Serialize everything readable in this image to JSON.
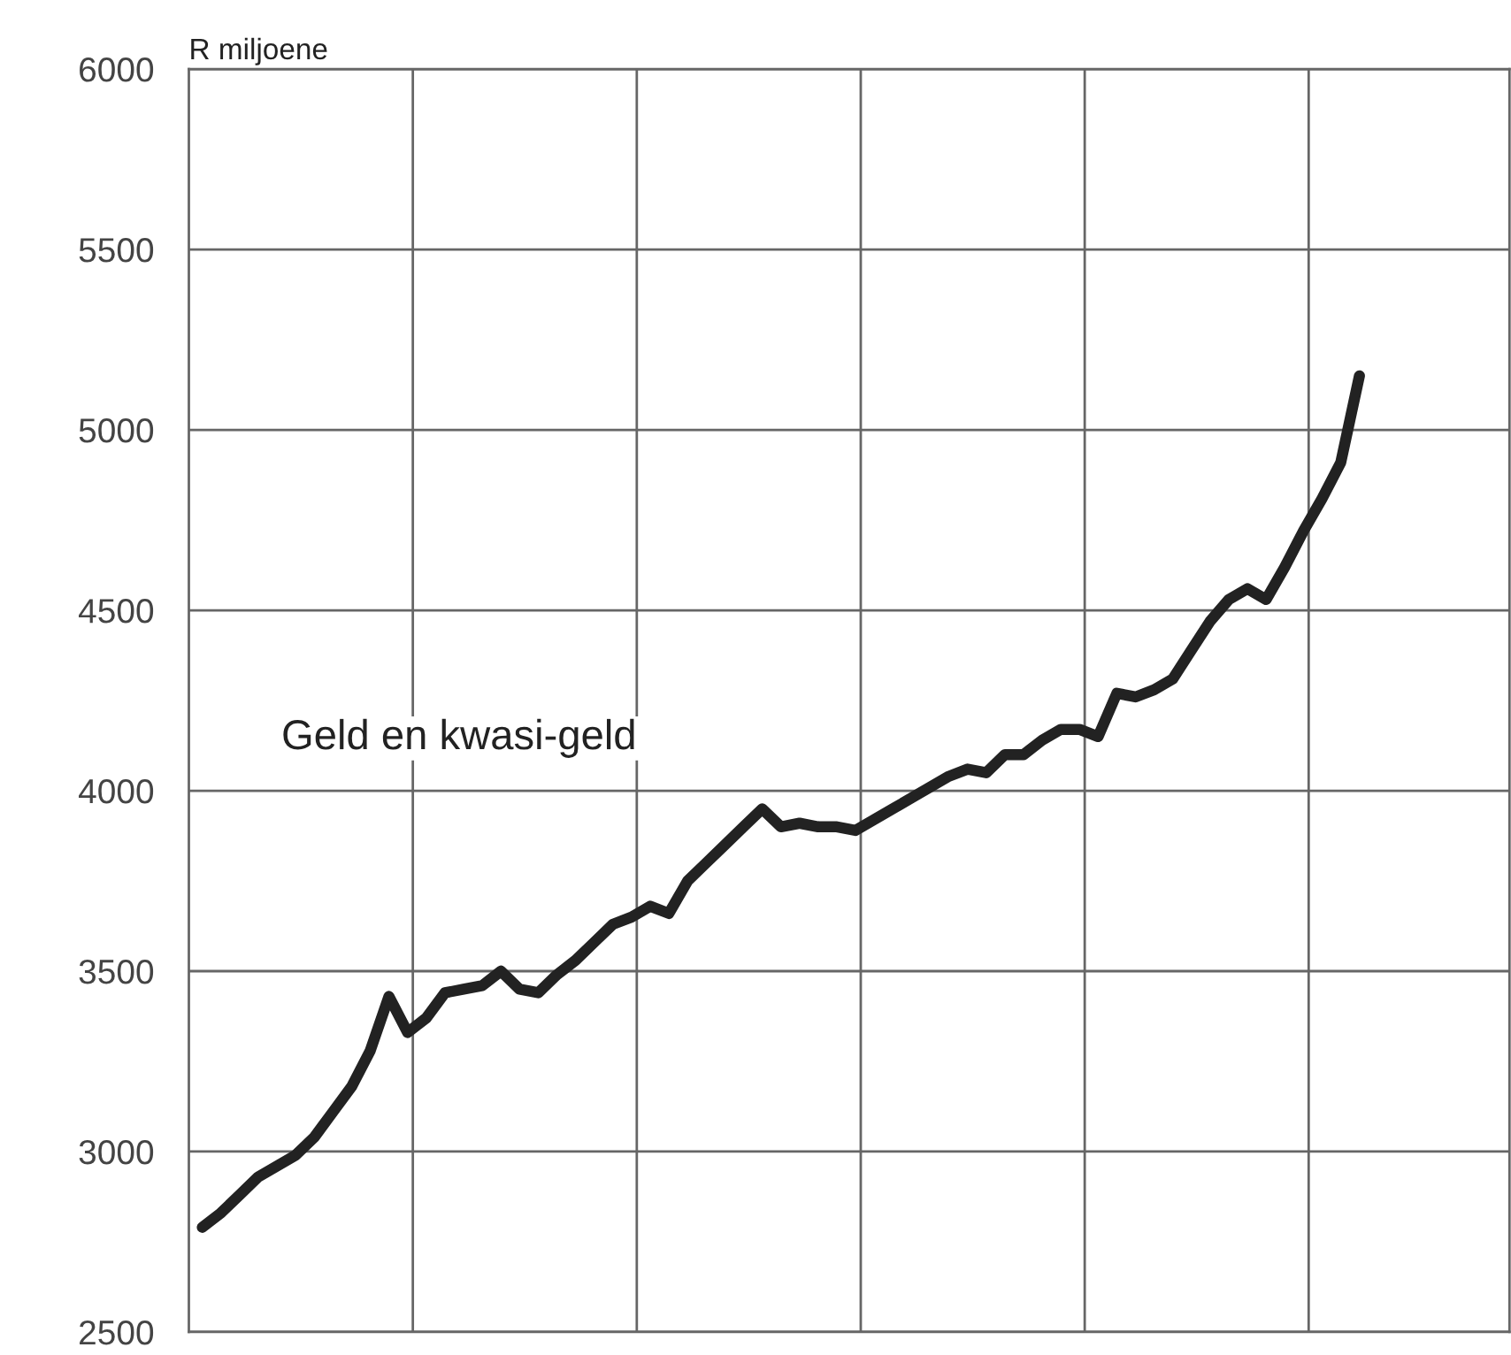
{
  "chart_data": {
    "type": "line",
    "ylabel": "R miljoene",
    "categories": [
      null,
      null,
      null,
      null,
      null,
      null,
      null,
      null,
      null,
      null,
      null,
      null,
      null,
      null,
      null,
      null,
      null,
      null,
      null,
      null,
      null,
      null,
      null,
      null,
      null,
      null,
      null,
      null,
      null,
      null,
      null,
      null,
      null,
      null,
      null,
      null,
      null,
      null,
      null,
      null,
      null,
      null,
      null,
      null,
      null,
      null,
      null,
      null,
      null,
      null,
      null,
      null,
      null,
      null,
      null,
      null,
      null,
      null,
      null,
      null,
      null,
      null,
      null
    ],
    "series": [
      {
        "name": "Geld en kwasi-geld",
        "color": "#222222",
        "values": [
          2790,
          2830,
          2880,
          2930,
          2960,
          2990,
          3040,
          3110,
          3180,
          3280,
          3430,
          3330,
          3370,
          3440,
          3450,
          3460,
          3500,
          3450,
          3440,
          3490,
          3530,
          3580,
          3630,
          3650,
          3680,
          3660,
          3750,
          3800,
          3850,
          3900,
          3950,
          3900,
          3910,
          3900,
          3900,
          3890,
          3920,
          3950,
          3980,
          4010,
          4040,
          4060,
          4050,
          4100,
          4100,
          4140,
          4170,
          4170,
          4150,
          4270,
          4260,
          4280,
          4310,
          4390,
          4470,
          4530,
          4560,
          4530,
          4620,
          4720,
          4810,
          4910,
          5150
        ]
      }
    ],
    "ylim": [
      2500,
      6000
    ],
    "yticks": [
      2500,
      3000,
      3500,
      4000,
      4500,
      5000,
      5500,
      6000
    ],
    "grid": true,
    "tick_labels": "y",
    "marker": "none",
    "line_style": "solid"
  }
}
